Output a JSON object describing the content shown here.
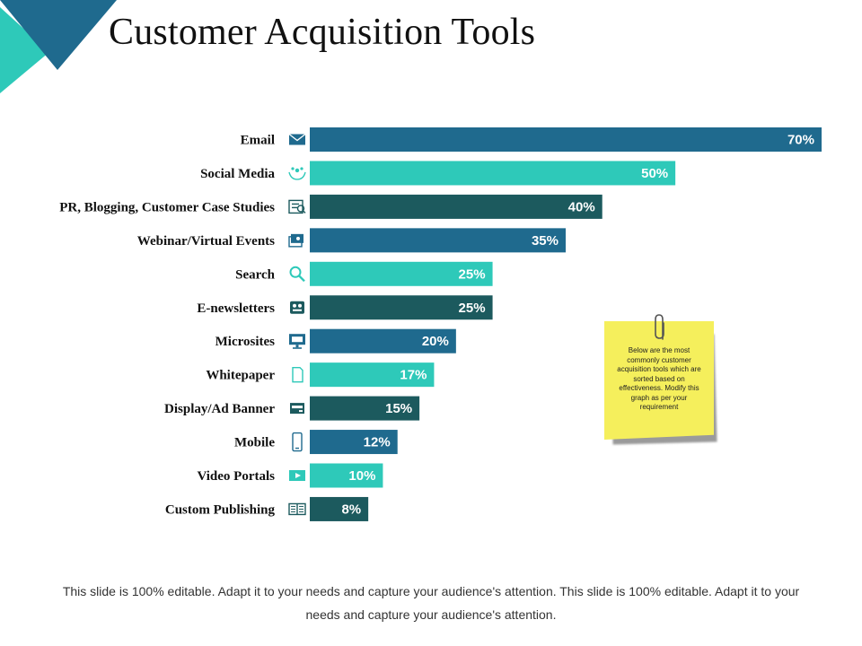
{
  "title": "Customer Acquisition Tools",
  "colors": {
    "blue": "#1f6a8e",
    "teal": "#2ec9b9",
    "dark": "#1c5a5e",
    "text": "#111111"
  },
  "chart_data": {
    "type": "bar",
    "orientation": "horizontal",
    "categories": [
      "Email",
      "Social Media",
      "PR, Blogging, Customer Case Studies",
      "Webinar/Virtual Events",
      "Search",
      "E-newsletters",
      "Microsites",
      "Whitepaper",
      "Display/Ad Banner",
      "Mobile",
      "Video Portals",
      "Custom Publishing"
    ],
    "values": [
      70,
      50,
      40,
      35,
      25,
      25,
      20,
      17,
      15,
      12,
      10,
      8
    ],
    "value_labels": [
      "70%",
      "50%",
      "40%",
      "35%",
      "25%",
      "25%",
      "20%",
      "17%",
      "15%",
      "12%",
      "10%",
      "8%"
    ],
    "icons": [
      "email-icon",
      "social-hands-icon",
      "case-study-icon",
      "webinar-icon",
      "search-icon",
      "newsletter-icon",
      "monitor-icon",
      "document-icon",
      "ad-banner-icon",
      "mobile-icon",
      "video-icon",
      "publishing-icon"
    ],
    "bar_colors": [
      "#1f6a8e",
      "#2ec9b9",
      "#1c5a5e",
      "#1f6a8e",
      "#2ec9b9",
      "#1c5a5e",
      "#1f6a8e",
      "#2ec9b9",
      "#1c5a5e",
      "#1f6a8e",
      "#2ec9b9",
      "#1c5a5e"
    ],
    "xlim": [
      0,
      70
    ],
    "grid": false,
    "legend": "none"
  },
  "note": {
    "text": "Below are the most commonly customer acquisition tools which are sorted based on effectiveness. Modify this graph as per your requirement"
  },
  "footer": "This slide is 100% editable. Adapt it to your needs and capture your audience's attention. This slide is 100% editable. Adapt it to your needs and capture your audience's attention."
}
